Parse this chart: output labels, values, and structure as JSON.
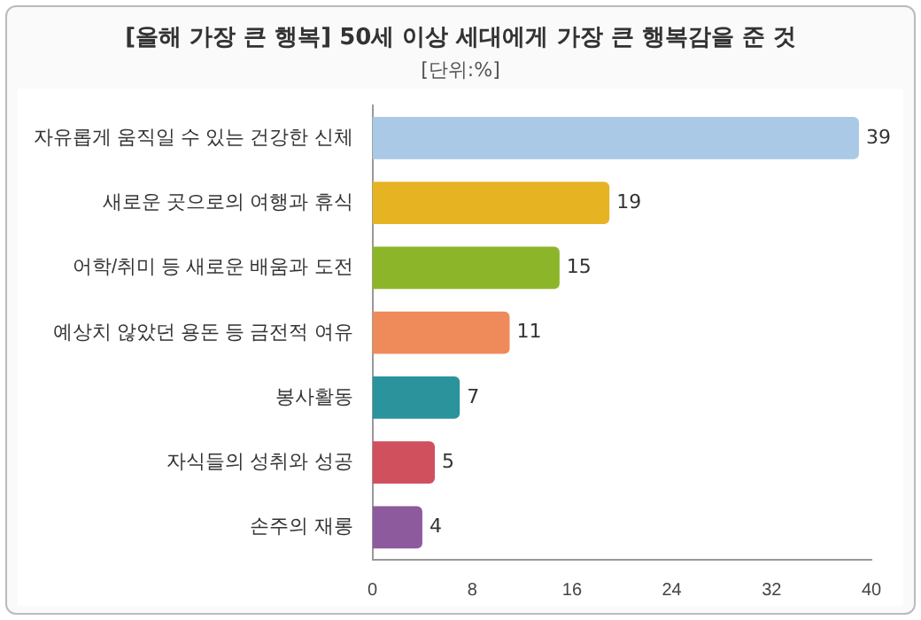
{
  "chart_data": {
    "type": "bar",
    "orientation": "horizontal",
    "title": "[올해 가장 큰 행복] 50세 이상 세대에게 가장 큰 행복감을 준 것",
    "subtitle": "[단위:%]",
    "categories": [
      "자유롭게 움직일 수 있는 건강한 신체",
      "새로운 곳으로의 여행과 휴식",
      "어학/취미 등 새로운 배움과 도전",
      "예상치 않았던 용돈 등 금전적 여유",
      "봉사활동",
      "자식들의 성취와 성공",
      "손주의 재롱"
    ],
    "values": [
      39,
      19,
      15,
      11,
      7,
      5,
      4
    ],
    "colors": [
      "#a9c9e6",
      "#e6b422",
      "#8db52a",
      "#ef8a5a",
      "#2a939c",
      "#d0505e",
      "#8e5a9e"
    ],
    "xlim": [
      0,
      40
    ],
    "xticks": [
      0,
      8,
      16,
      24,
      32,
      40
    ],
    "grid": false,
    "legend": false,
    "data_labels": true
  }
}
